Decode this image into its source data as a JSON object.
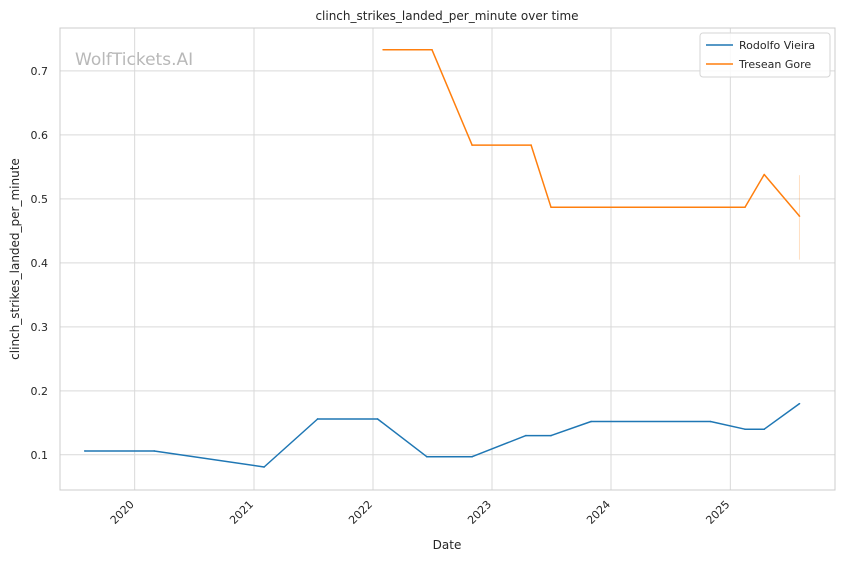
{
  "chart_data": {
    "type": "line",
    "title": "clinch_strikes_landed_per_minute over time",
    "xlabel": "Date",
    "ylabel": "clinch_strikes_landed_per_minute",
    "watermark": "WolfTickets.AI",
    "xlim": [
      "2019-05-17",
      "2025-11-18"
    ],
    "ylim": [
      0.045,
      0.767
    ],
    "xticks": [
      "2020",
      "2021",
      "2022",
      "2023",
      "2024",
      "2025"
    ],
    "yticks": [
      0.1,
      0.2,
      0.3,
      0.4,
      0.5,
      0.6,
      0.7
    ],
    "grid": true,
    "legend": "top-right",
    "series": [
      {
        "name": "Rodolfo Vieira",
        "color": "#1f77b4",
        "points": [
          [
            "2019-08-01",
            0.106
          ],
          [
            "2020-03-01",
            0.106
          ],
          [
            "2021-02-01",
            0.081
          ],
          [
            "2021-07-15",
            0.156
          ],
          [
            "2022-01-15",
            0.156
          ],
          [
            "2022-06-15",
            0.097
          ],
          [
            "2022-11-01",
            0.097
          ],
          [
            "2023-04-15",
            0.13
          ],
          [
            "2023-07-01",
            0.13
          ],
          [
            "2023-11-01",
            0.152
          ],
          [
            "2024-11-01",
            0.152
          ],
          [
            "2025-02-15",
            0.14
          ],
          [
            "2025-04-15",
            0.14
          ],
          [
            "2025-08-01",
            0.18
          ]
        ]
      },
      {
        "name": "Tresean Gore",
        "color": "#ff7f0e",
        "points": [
          [
            "2022-02-01",
            0.733
          ],
          [
            "2022-07-01",
            0.733
          ],
          [
            "2022-11-01",
            0.584
          ],
          [
            "2023-05-01",
            0.584
          ],
          [
            "2023-07-01",
            0.487
          ],
          [
            "2025-02-15",
            0.487
          ],
          [
            "2025-04-15",
            0.538
          ],
          [
            "2025-08-01",
            0.473
          ]
        ],
        "error_bar": {
          "x": "2025-08-01",
          "low": 0.405,
          "high": 0.537
        }
      }
    ]
  }
}
